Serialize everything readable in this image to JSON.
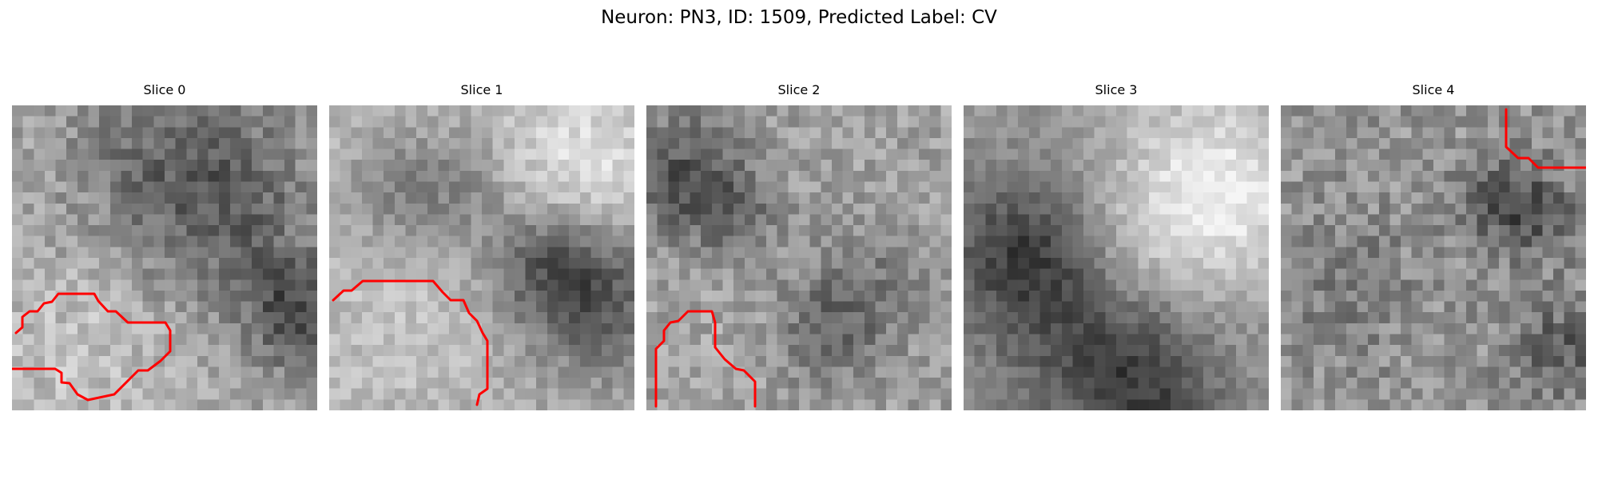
{
  "title": "Neuron: PN3, ID: 1509, Predicted Label: CV",
  "panels": [
    {
      "title": "Slice 0"
    },
    {
      "title": "Slice 1"
    },
    {
      "title": "Slice 2"
    },
    {
      "title": "Slice 3"
    },
    {
      "title": "Slice 4"
    }
  ],
  "colormap": "gray",
  "contour_color": "#ff0000"
}
